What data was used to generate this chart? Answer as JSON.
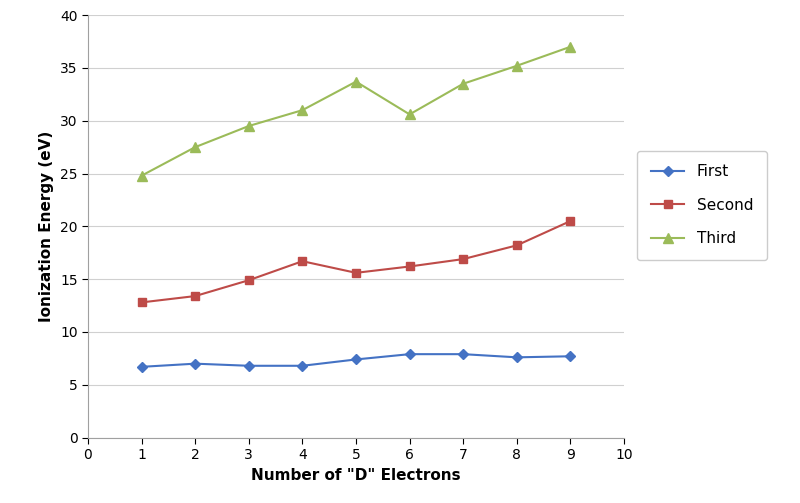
{
  "x": [
    1,
    2,
    3,
    4,
    5,
    6,
    7,
    8,
    9
  ],
  "first": [
    6.7,
    7.0,
    6.8,
    6.8,
    7.4,
    7.9,
    7.9,
    7.6,
    7.7
  ],
  "second": [
    12.8,
    13.4,
    14.9,
    16.7,
    15.6,
    16.2,
    16.9,
    18.2,
    20.5
  ],
  "third": [
    24.8,
    27.5,
    29.5,
    31.0,
    33.7,
    30.6,
    33.5,
    35.2,
    37.0
  ],
  "first_color": "#4472C4",
  "second_color": "#BE4B48",
  "third_color": "#9BBB59",
  "xlabel": "Number of \"D\" Electrons",
  "ylabel": "Ionization Energy (eV)",
  "xlim": [
    0,
    10
  ],
  "ylim": [
    0,
    40
  ],
  "xticks": [
    0,
    1,
    2,
    3,
    4,
    5,
    6,
    7,
    8,
    9,
    10
  ],
  "yticks": [
    0,
    5,
    10,
    15,
    20,
    25,
    30,
    35,
    40
  ],
  "legend_labels": [
    "First",
    "Second",
    "Third"
  ],
  "bg_color": "#FFFFFF",
  "plot_bg_color": "#FFFFFF"
}
